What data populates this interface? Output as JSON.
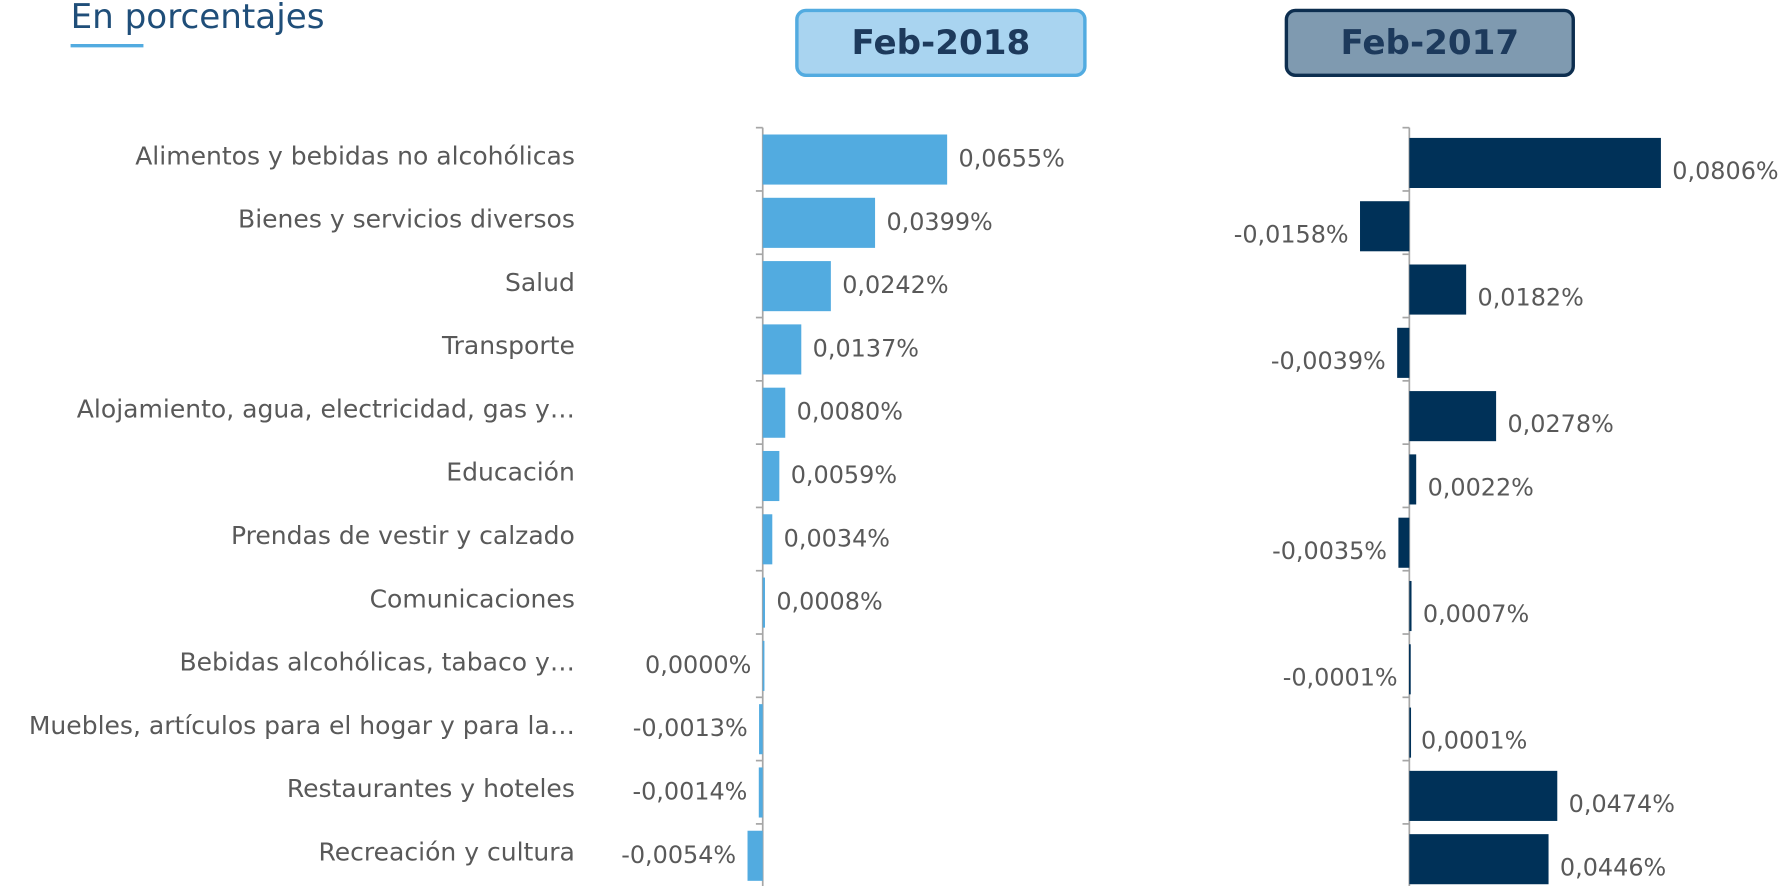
{
  "chart_data": {
    "type": "bar",
    "orientation": "horizontal",
    "title": "En porcentajes",
    "categories": [
      "Alimentos y bebidas no alcohólicas",
      "Bienes y servicios diversos",
      "Salud",
      "Transporte",
      "Alojamiento, agua, electricidad, gas y…",
      "Educación",
      "Prendas de vestir y calzado",
      "Comunicaciones",
      "Bebidas alcohólicas, tabaco y…",
      "Muebles, artículos para el hogar y para la…",
      "Restaurantes y hoteles",
      "Recreación y cultura"
    ],
    "series": [
      {
        "name": "Feb-2018",
        "color": "#52abe0",
        "values": [
          0.0655,
          0.0399,
          0.0242,
          0.0137,
          0.008,
          0.0059,
          0.0034,
          0.0008,
          0.0,
          -0.0013,
          -0.0014,
          -0.0054
        ],
        "value_labels": [
          "0,0655%",
          "0,0399%",
          "0,0242%",
          "0,0137%",
          "0,0080%",
          "0,0059%",
          "0,0034%",
          "0,0008%",
          "0,0000%",
          "-0,0013%",
          "-0,0014%",
          "-0,0054%"
        ]
      },
      {
        "name": "Feb-2017",
        "color": "#003158",
        "values": [
          0.0806,
          -0.0158,
          0.0182,
          -0.0039,
          0.0278,
          0.0022,
          -0.0035,
          0.0007,
          -0.0001,
          0.0001,
          0.0474,
          0.0446
        ],
        "value_labels": [
          "0,0806%",
          "-0,0158%",
          "0,0182%",
          "-0,0039%",
          "0,0278%",
          "0,0022%",
          "-0,0035%",
          "0,0007%",
          "-0,0001%",
          "0,0001%",
          "0,0474%",
          "0,0446%"
        ]
      }
    ]
  }
}
